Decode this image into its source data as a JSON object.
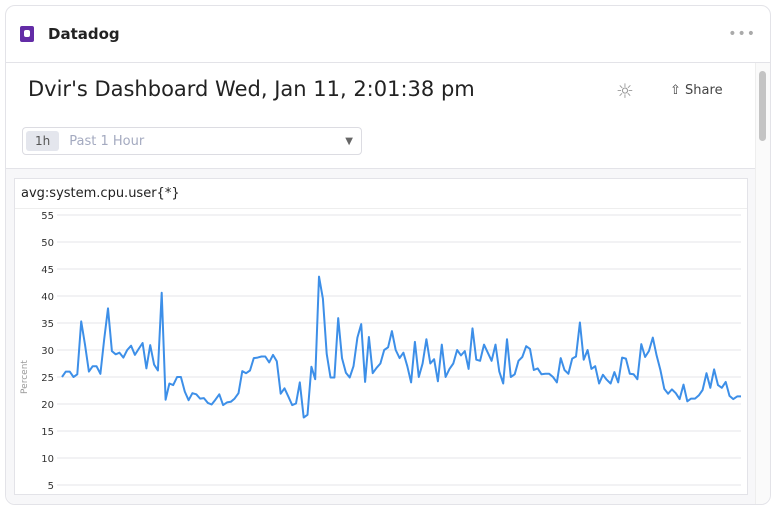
{
  "app": {
    "name": "Datadog",
    "more_label": "•••"
  },
  "dashboard": {
    "title": "Dvir's Dashboard Wed, Jan 11, 2:01:38 pm",
    "share_label": "Share"
  },
  "timeframe": {
    "short": "1h",
    "label": "Past 1 Hour"
  },
  "widget": {
    "title": "avg:system.cpu.user{*}"
  },
  "colors": {
    "line": "#3d8fe8",
    "brand": "#632ca6"
  },
  "chart_data": {
    "type": "line",
    "ylabel": "Percent",
    "ylim": [
      0,
      55
    ],
    "yticks": [
      5,
      10,
      15,
      20,
      25,
      30,
      35,
      40,
      45,
      50,
      55
    ],
    "grid": true,
    "series": [
      {
        "values": [
          25,
          26,
          26,
          25,
          25.5,
          35.3,
          31,
          26,
          27,
          27,
          25.6,
          32,
          37.7,
          29.8,
          29.2,
          29.5,
          28.6,
          30,
          30.8,
          29.1,
          30.2,
          31.3,
          26.6,
          30.9,
          27.3,
          26.2,
          40.6,
          20.8,
          23.8,
          23.5,
          25,
          25,
          22.3,
          20.7,
          22,
          21.8,
          21,
          21.1,
          20.2,
          19.9,
          20.8,
          21.8,
          19.8,
          20.3,
          20.4,
          21,
          22,
          26.1,
          25.7,
          26.2,
          28.5,
          28.6,
          28.8,
          28.8,
          27.7,
          29.1,
          27.9,
          21.9,
          22.9,
          21.4,
          19.8,
          20.1,
          24,
          17.5,
          18,
          26.9,
          24.6,
          43.6,
          39.5,
          29.3,
          24.9,
          24.9,
          35.9,
          28.5,
          25.8,
          24.9,
          27,
          32.3,
          34.8,
          24.1,
          32.4,
          25.7,
          26.7,
          27.5,
          30,
          30.5,
          33.5,
          30,
          28.5,
          29.5,
          27,
          24,
          31.5,
          25,
          27.5,
          32,
          27.5,
          28.3,
          24.2,
          31,
          25,
          26.5,
          27.5,
          30,
          29,
          29.8,
          26.5,
          34,
          28.2,
          28,
          31,
          29.5,
          28,
          31,
          26,
          23.8,
          32,
          25,
          25.5,
          28,
          28.7,
          30.7,
          30.2,
          26.3,
          26.6,
          25.5,
          25.6,
          25.6,
          25,
          24,
          28.5,
          26.3,
          25.6,
          28.4,
          28.8,
          35.1,
          28.2,
          30,
          26.5,
          27,
          23.8,
          25.4,
          24.5,
          23.8,
          25.9,
          24,
          28.6,
          28.4,
          25.6,
          25.5,
          24.6,
          31.1,
          28.7,
          29.8,
          32.3,
          29,
          26.3,
          22.8,
          21.9,
          22.7,
          22,
          20.9,
          23.6,
          20.5,
          21,
          21,
          21.6,
          22.6,
          25.7,
          23,
          26.4,
          23.5,
          23,
          24.1,
          21.5,
          20.9,
          21.4,
          21.4
        ]
      }
    ]
  }
}
